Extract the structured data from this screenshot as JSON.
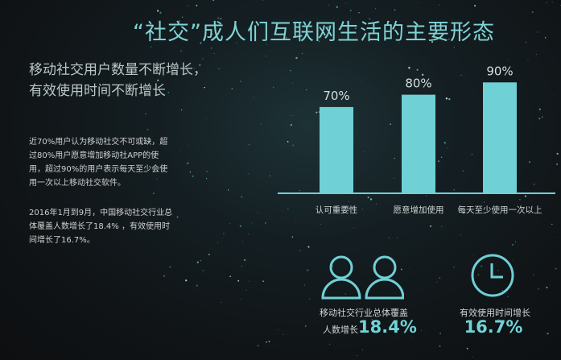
{
  "title": "“社交”成人们互联网生活的主要形态",
  "heading": "移动社交用户数量不断增长，有效使用时间不断增长",
  "paragraphs": [
    "近70%用户认为移动社交不可或缺，超过80%用户愿意增加移动社APP的使用，超过90%的用户表示每天至少会使用一次以上移动社交软件。",
    "2016年1月到9月，中国移动社交行业总体覆盖人数增长了18.4%  ，有效使用时间增长了16.7%。"
  ],
  "colors": {
    "accent": "#6fd0d6",
    "background": "#12181b"
  },
  "chart_data": {
    "type": "bar",
    "categories": [
      "认可重要性",
      "愿意增加使用",
      "每天至少使用一次以上"
    ],
    "values": [
      70,
      80,
      90
    ],
    "data_labels": [
      "70%",
      "80%",
      "90%"
    ],
    "ylim": [
      0,
      100
    ],
    "grid": false
  },
  "stats": [
    {
      "icon": "users-icon",
      "label_line1": "移动社交行业总体覆盖",
      "label_line2": "人数增长",
      "value": "18.4%"
    },
    {
      "icon": "clock-icon",
      "label_line1": "有效使用时间增长",
      "label_line2": "",
      "value": "16.7%"
    }
  ]
}
